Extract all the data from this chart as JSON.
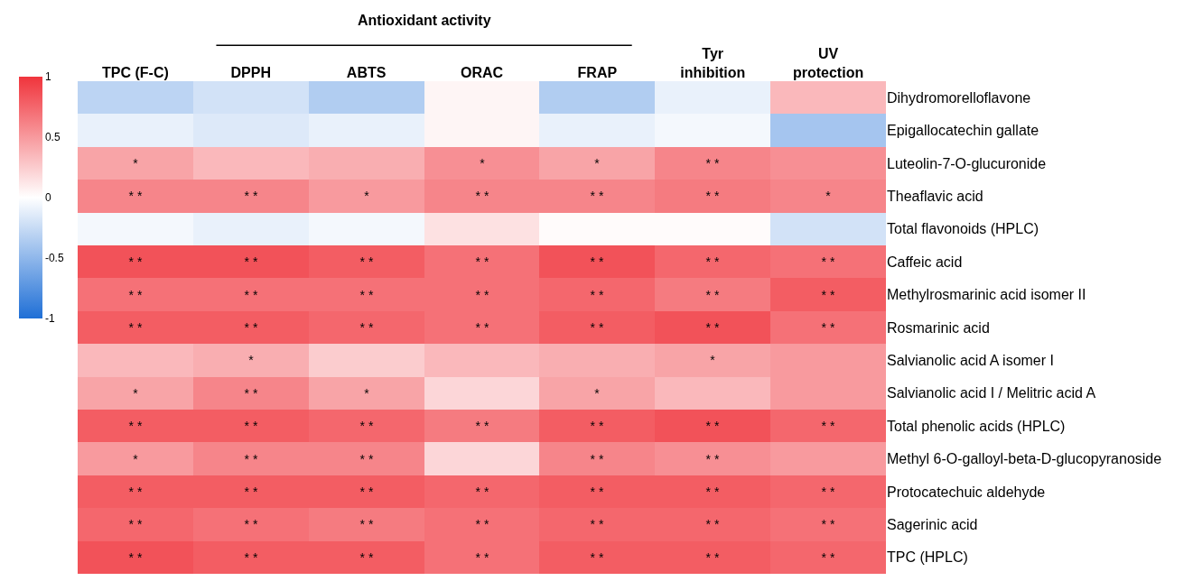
{
  "chart_data": {
    "type": "heatmap",
    "categories": [
      "TPC (F-C)",
      "DPPH",
      "ABTS",
      "ORAC",
      "FRAP",
      "Tyr\ninhibition",
      "UV\nprotection"
    ],
    "y_categories": [
      "Dihydromorelloflavone",
      "Epigallocatechin gallate",
      "Luteolin-7-O-glucuronide",
      "Theaflavic acid",
      "Total flavonoids (HPLC)",
      "Caffeic acid",
      "Methylrosmarinic acid isomer II",
      "Rosmarinic acid",
      "Salvianolic acid A isomer I",
      "Salvianolic acid I / Melitric acid A",
      "Total phenolic acids (HPLC)",
      "Methyl 6-O-galloyl-beta-D-glucopyranoside",
      "Protocatechuic aldehyde",
      "Sagerinic acid",
      "TPC (HPLC)"
    ],
    "cells": [
      [
        -0.3,
        -0.2,
        -0.35,
        0.05,
        -0.35,
        -0.1,
        0.35
      ],
      [
        -0.1,
        -0.15,
        -0.1,
        0.05,
        -0.1,
        -0.05,
        -0.4
      ],
      [
        0.45,
        0.35,
        0.4,
        0.55,
        0.45,
        0.6,
        0.55
      ],
      [
        0.6,
        0.6,
        0.5,
        0.6,
        0.6,
        0.65,
        0.6
      ],
      [
        -0.05,
        -0.1,
        -0.05,
        0.15,
        0.02,
        0.02,
        -0.2
      ],
      [
        0.85,
        0.85,
        0.8,
        0.7,
        0.85,
        0.75,
        0.7
      ],
      [
        0.7,
        0.7,
        0.7,
        0.7,
        0.75,
        0.65,
        0.8
      ],
      [
        0.8,
        0.8,
        0.75,
        0.7,
        0.8,
        0.85,
        0.7
      ],
      [
        0.35,
        0.4,
        0.25,
        0.35,
        0.4,
        0.45,
        0.5
      ],
      [
        0.45,
        0.6,
        0.45,
        0.2,
        0.45,
        0.35,
        0.5
      ],
      [
        0.8,
        0.8,
        0.75,
        0.65,
        0.8,
        0.85,
        0.75
      ],
      [
        0.5,
        0.6,
        0.6,
        0.2,
        0.6,
        0.55,
        0.5
      ],
      [
        0.8,
        0.8,
        0.8,
        0.75,
        0.8,
        0.8,
        0.75
      ],
      [
        0.75,
        0.7,
        0.65,
        0.7,
        0.75,
        0.75,
        0.7
      ],
      [
        0.85,
        0.8,
        0.8,
        0.7,
        0.8,
        0.8,
        0.75
      ]
    ],
    "cell_labels": [
      [
        null,
        null,
        null,
        null,
        null,
        null,
        null
      ],
      [
        null,
        null,
        null,
        null,
        null,
        null,
        null
      ],
      [
        "*",
        null,
        null,
        "*",
        "*",
        "* *",
        null
      ],
      [
        "* *",
        "* *",
        "*",
        "* *",
        "* *",
        "* *",
        "*"
      ],
      [
        null,
        null,
        null,
        null,
        null,
        null,
        null
      ],
      [
        "* *",
        "* *",
        "* *",
        "* *",
        "* *",
        "* *",
        "* *"
      ],
      [
        "* *",
        "* *",
        "* *",
        "* *",
        "* *",
        "* *",
        "* *"
      ],
      [
        "* *",
        "* *",
        "* *",
        "* *",
        "* *",
        "* *",
        "* *"
      ],
      [
        null,
        "*",
        null,
        null,
        null,
        "*",
        null
      ],
      [
        "*",
        "* *",
        "*",
        null,
        "*",
        null,
        null
      ],
      [
        "* *",
        "* *",
        "* *",
        "* *",
        "* *",
        "* *",
        "* *"
      ],
      [
        "*",
        "* *",
        "* *",
        null,
        "* *",
        "* *",
        null
      ],
      [
        "* *",
        "* *",
        "* *",
        "* *",
        "* *",
        "* *",
        "* *"
      ],
      [
        "* *",
        "* *",
        "* *",
        "* *",
        "* *",
        "* *",
        "* *"
      ],
      [
        "* *",
        "* *",
        "* *",
        "* *",
        "* *",
        "* *",
        "* *"
      ]
    ],
    "clim": [
      -1,
      1
    ],
    "cticks": [
      -1,
      -0.5,
      0,
      0.5,
      1
    ],
    "annotations": [
      "Antioxidant activity"
    ]
  }
}
